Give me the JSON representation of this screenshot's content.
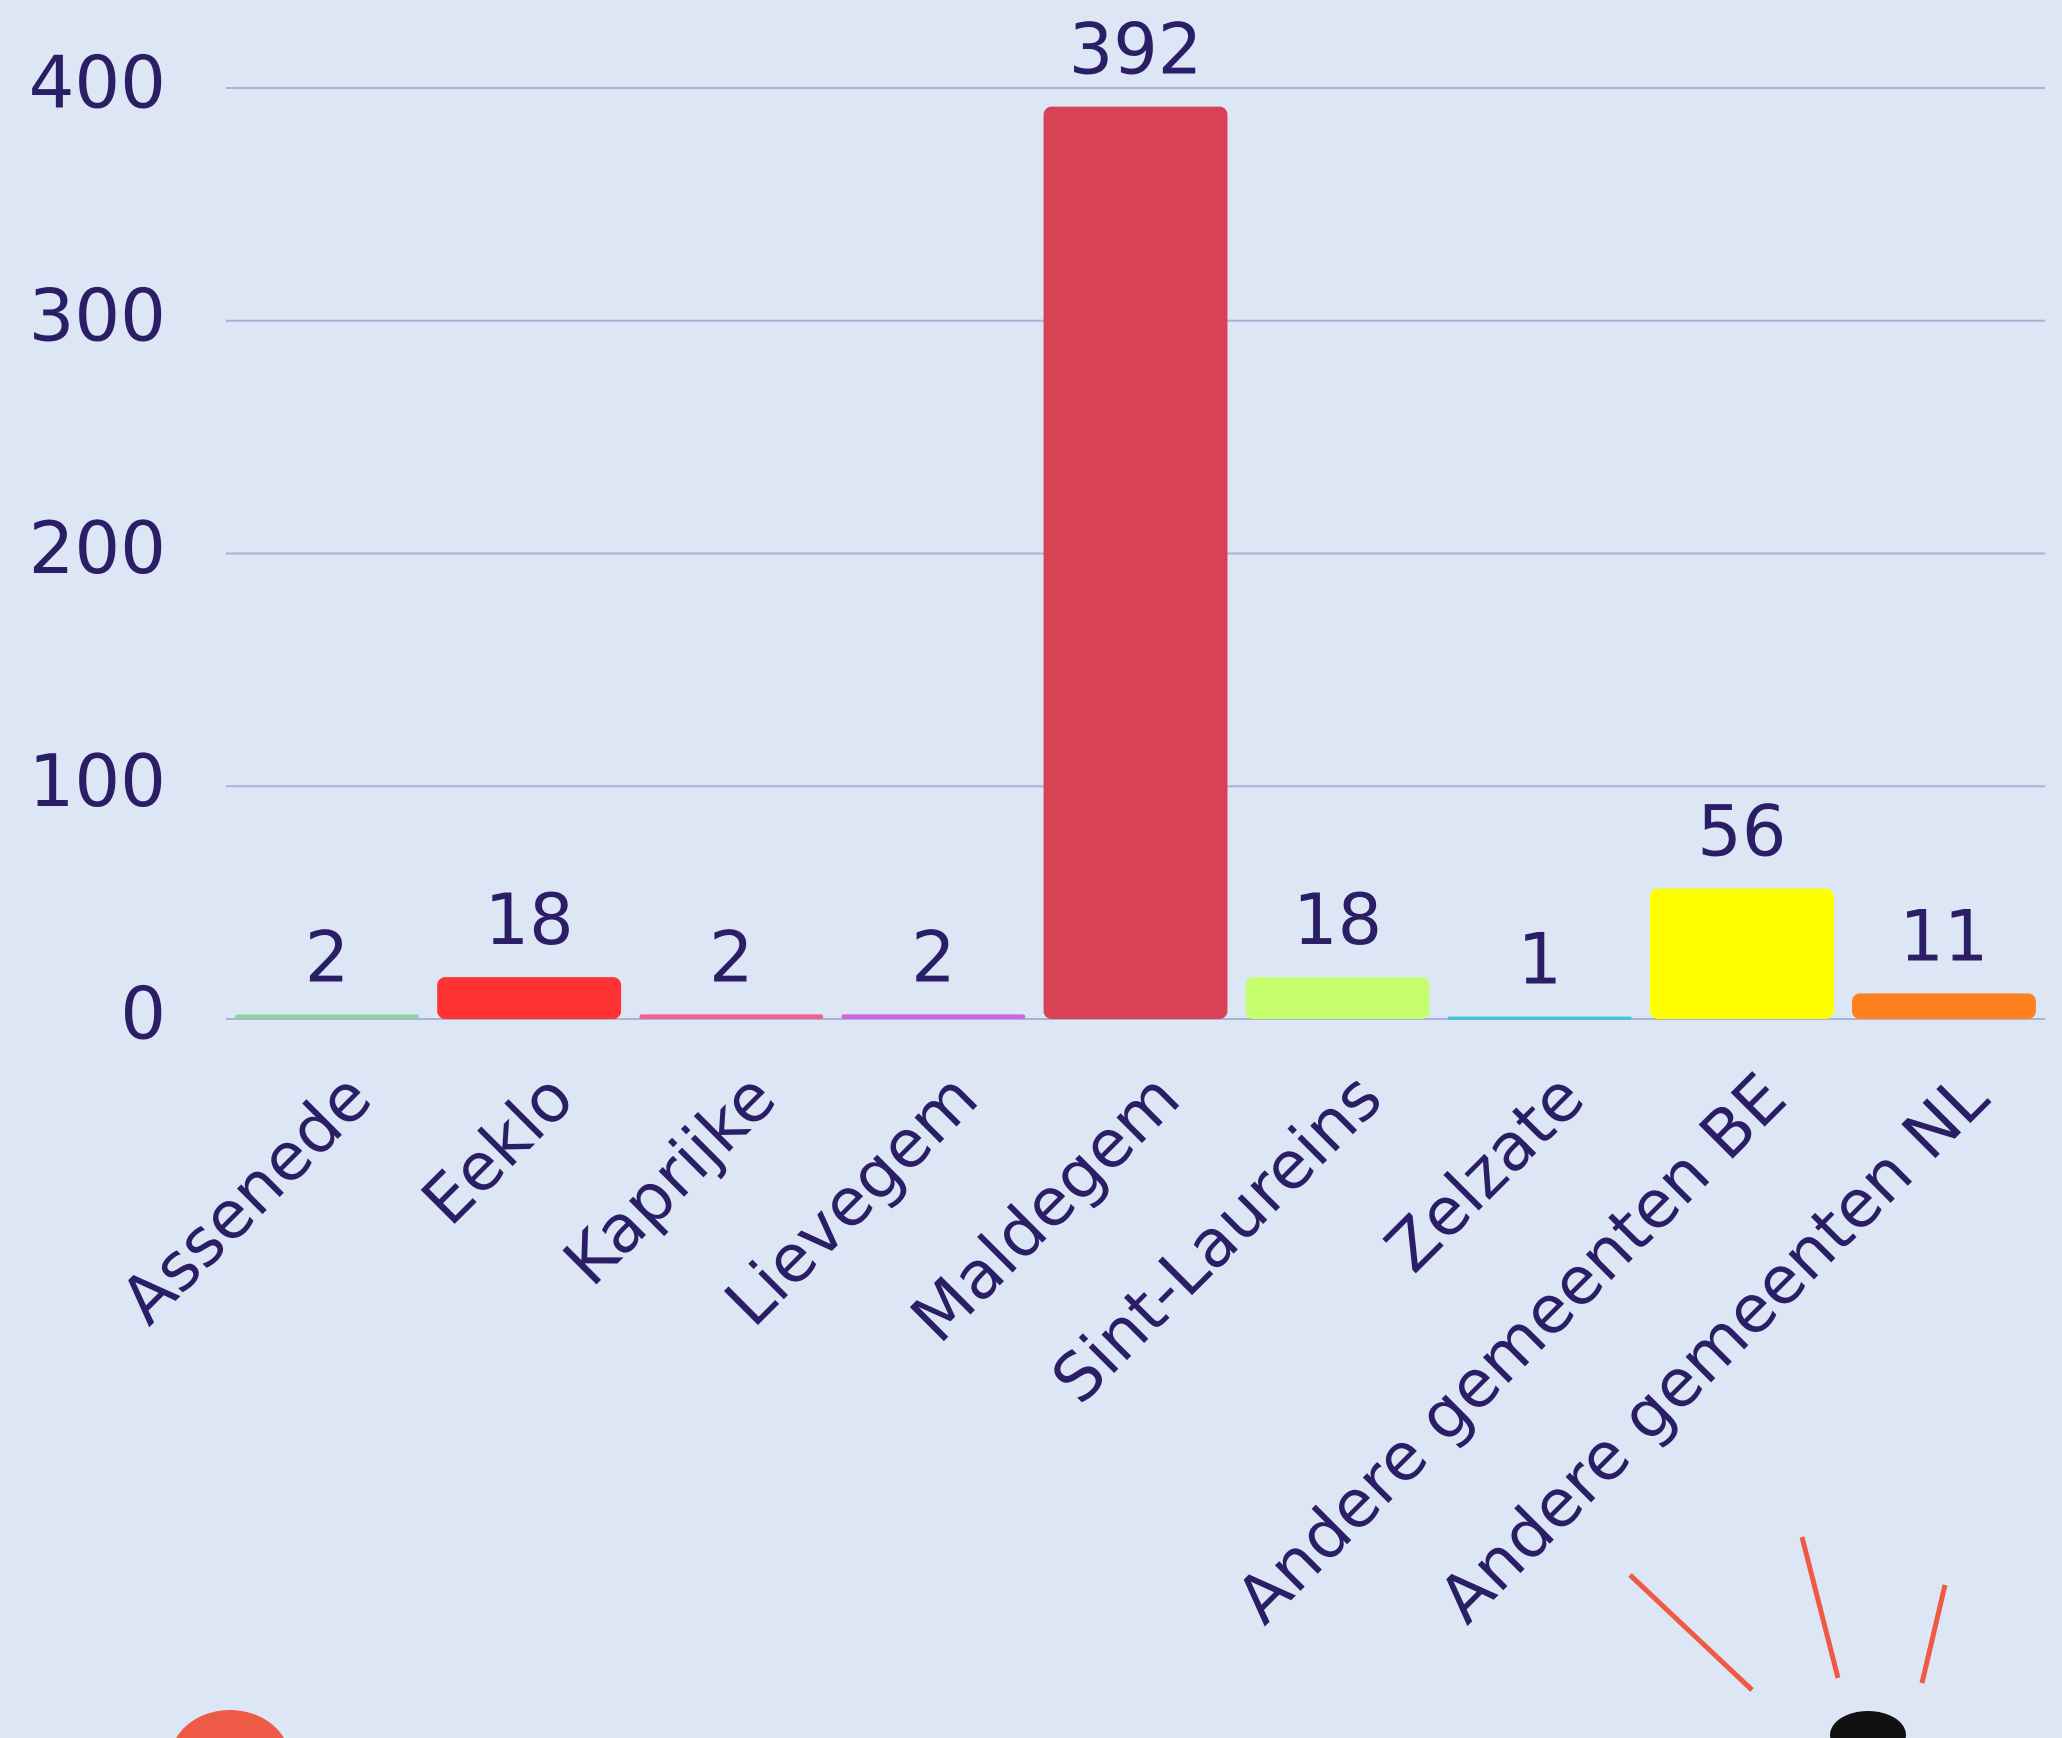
{
  "chart_data": {
    "type": "bar",
    "categories": [
      "Assenede",
      "Eeklo",
      "Kaprijke",
      "Lievegem",
      "Maldegem",
      "Sint-Laureins",
      "Zelzate",
      "Andere gemeenten BE",
      "Andere gemeenten NL"
    ],
    "values": [
      2,
      18,
      2,
      2,
      392,
      18,
      1,
      56,
      11
    ],
    "colors": [
      "#8fd0a4",
      "#ff3333",
      "#f0628f",
      "#c966e0",
      "#d94157",
      "#c6ff6e",
      "#3fc4d6",
      "#ffff00",
      "#ff8020"
    ],
    "ylim": [
      0,
      400
    ],
    "yticks": [
      0,
      100,
      200,
      300,
      400
    ],
    "grid": true
  }
}
